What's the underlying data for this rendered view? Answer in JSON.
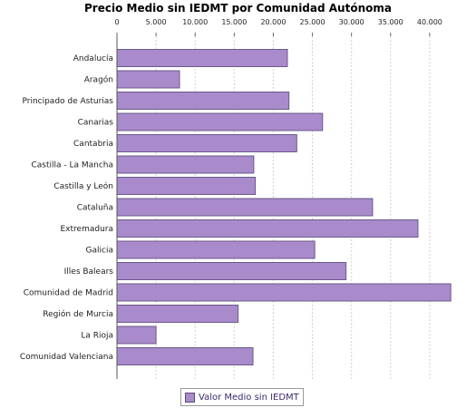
{
  "chart_data": {
    "type": "bar",
    "orientation": "horizontal",
    "title": "Precio Medio sin IEDMT por Comunidad Autónoma",
    "categories": [
      "Andalucía",
      "Aragón",
      "Principado de Asturias",
      "Canarias",
      "Cantabria",
      "Castilla - La Mancha",
      "Castilla y León",
      "Cataluña",
      "Extremadura",
      "Galicia",
      "Illes Balears",
      "Comunidad de Madrid",
      "Región de Murcia",
      "La Rioja",
      "Comunidad Valenciana"
    ],
    "series": [
      {
        "name": "Valor Medio sin IEDMT",
        "values": [
          21800,
          8000,
          22000,
          26300,
          23000,
          17500,
          17700,
          32700,
          38500,
          25300,
          29300,
          42700,
          15500,
          5000,
          17400
        ],
        "color": "#a98acb"
      }
    ],
    "xlim": [
      0,
      45000
    ],
    "xticks": [
      0,
      5000,
      10000,
      15000,
      20000,
      25000,
      30000,
      35000,
      40000
    ],
    "xtick_labels": [
      "0",
      "5.000",
      "10.000",
      "15.000",
      "20.000",
      "25.000",
      "30.000",
      "35.000",
      "40.000"
    ],
    "grid": true,
    "legend_position": "bottom"
  }
}
